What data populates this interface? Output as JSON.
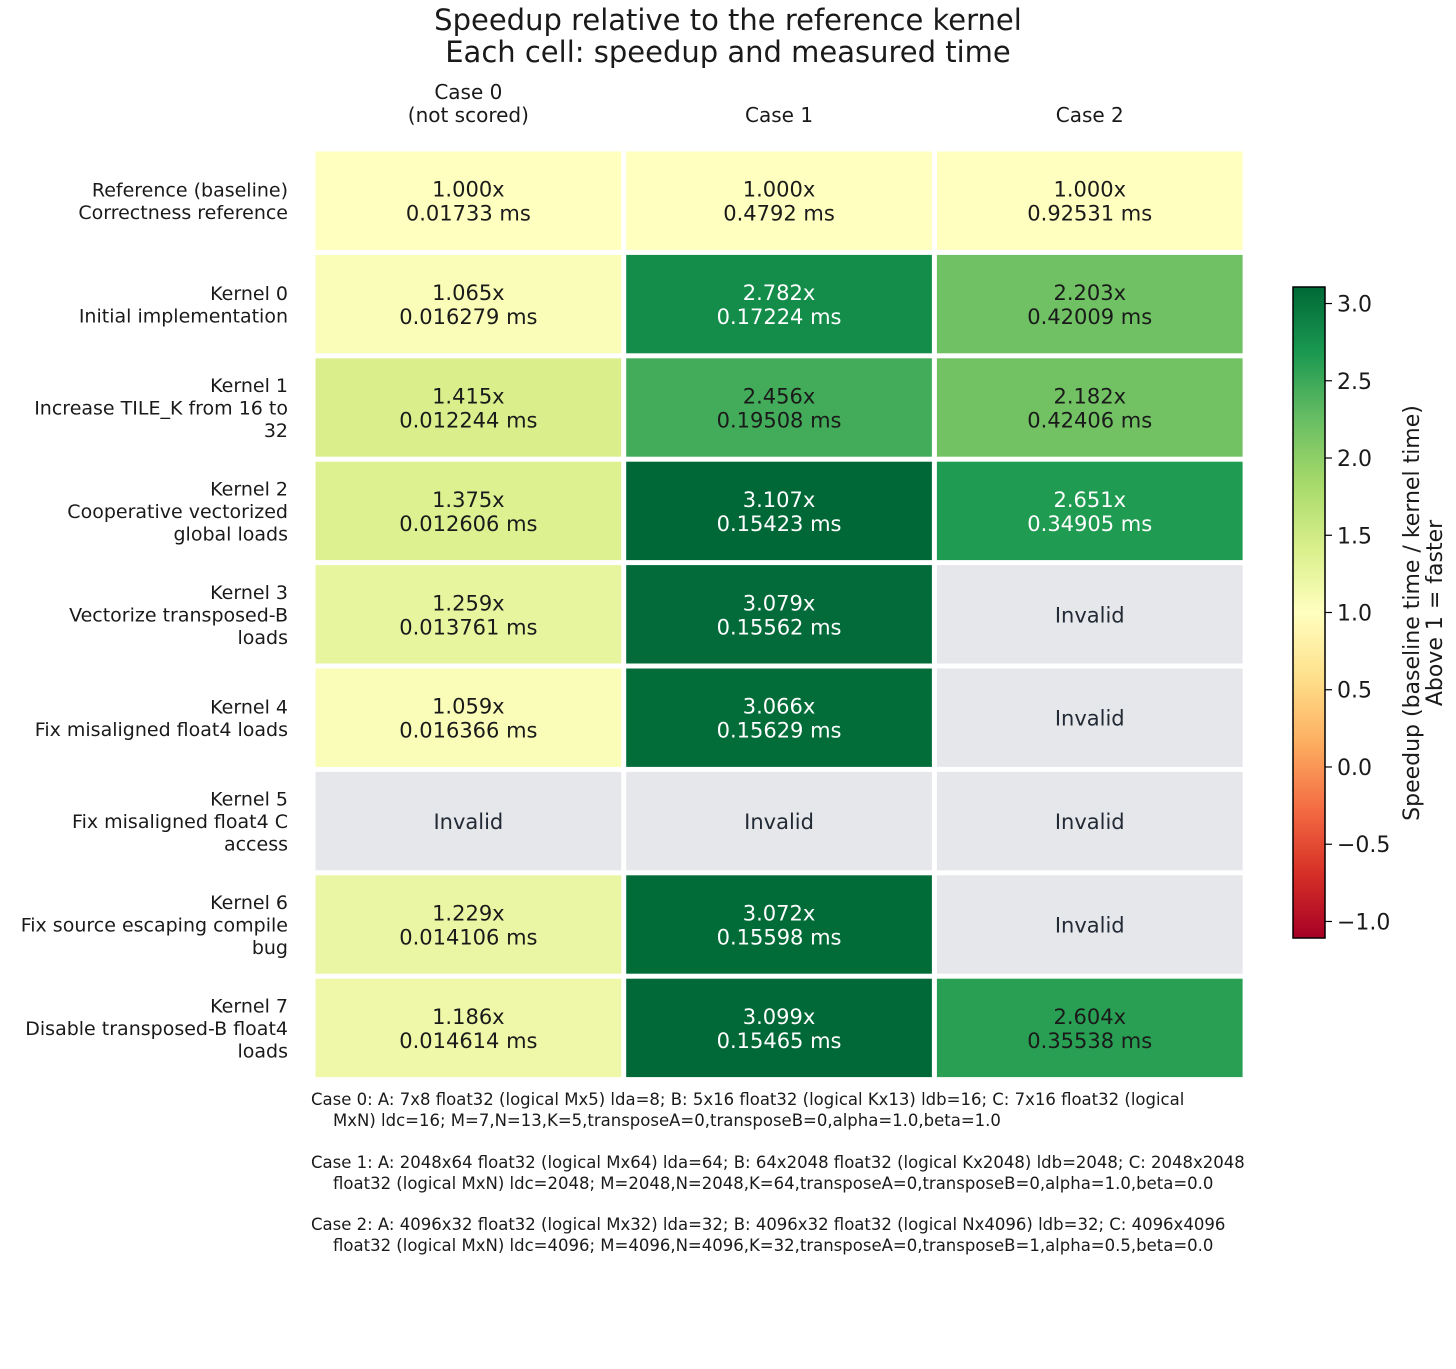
{
  "chart_data": {
    "type": "heatmap",
    "title": "Speedup relative to the reference kernel",
    "subtitle": "Each cell: speedup and measured time",
    "columns": [
      {
        "line1": "Case 0",
        "line2": "(not scored)"
      },
      {
        "line1": "Case 1",
        "line2": ""
      },
      {
        "line1": "Case 2",
        "line2": ""
      }
    ],
    "rows": [
      {
        "lines": [
          "Reference (baseline)",
          "Correctness reference"
        ]
      },
      {
        "lines": [
          "Kernel 0",
          "Initial implementation"
        ]
      },
      {
        "lines": [
          "Kernel 1",
          "Increase TILE_K from 16 to",
          "32"
        ]
      },
      {
        "lines": [
          "Kernel 2",
          "Cooperative vectorized",
          "global loads"
        ]
      },
      {
        "lines": [
          "Kernel 3",
          "Vectorize transposed-B",
          "loads"
        ]
      },
      {
        "lines": [
          "Kernel 4",
          "Fix misaligned float4 loads"
        ]
      },
      {
        "lines": [
          "Kernel 5",
          "Fix misaligned float4 C",
          "access"
        ]
      },
      {
        "lines": [
          "Kernel 6",
          "Fix source escaping compile",
          "bug"
        ]
      },
      {
        "lines": [
          "Kernel 7",
          "Disable transposed-B float4",
          "loads"
        ]
      }
    ],
    "values": [
      [
        1.0,
        1.0,
        1.0
      ],
      [
        1.065,
        2.782,
        2.203
      ],
      [
        1.415,
        2.456,
        2.182
      ],
      [
        1.375,
        3.107,
        2.651
      ],
      [
        1.259,
        3.079,
        null
      ],
      [
        1.059,
        3.066,
        null
      ],
      [
        null,
        null,
        null
      ],
      [
        1.229,
        3.072,
        null
      ],
      [
        1.186,
        3.099,
        2.604
      ]
    ],
    "cells": [
      [
        {
          "speedup": "1.000x",
          "time": "0.01733 ms"
        },
        {
          "speedup": "1.000x",
          "time": "0.4792 ms"
        },
        {
          "speedup": "1.000x",
          "time": "0.92531 ms"
        }
      ],
      [
        {
          "speedup": "1.065x",
          "time": "0.016279 ms"
        },
        {
          "speedup": "2.782x",
          "time": "0.17224 ms"
        },
        {
          "speedup": "2.203x",
          "time": "0.42009 ms"
        }
      ],
      [
        {
          "speedup": "1.415x",
          "time": "0.012244 ms"
        },
        {
          "speedup": "2.456x",
          "time": "0.19508 ms"
        },
        {
          "speedup": "2.182x",
          "time": "0.42406 ms"
        }
      ],
      [
        {
          "speedup": "1.375x",
          "time": "0.012606 ms"
        },
        {
          "speedup": "3.107x",
          "time": "0.15423 ms"
        },
        {
          "speedup": "2.651x",
          "time": "0.34905 ms"
        }
      ],
      [
        {
          "speedup": "1.259x",
          "time": "0.013761 ms"
        },
        {
          "speedup": "3.079x",
          "time": "0.15562 ms"
        },
        {
          "invalid": "Invalid"
        }
      ],
      [
        {
          "speedup": "1.059x",
          "time": "0.016366 ms"
        },
        {
          "speedup": "3.066x",
          "time": "0.15629 ms"
        },
        {
          "invalid": "Invalid"
        }
      ],
      [
        {
          "invalid": "Invalid"
        },
        {
          "invalid": "Invalid"
        },
        {
          "invalid": "Invalid"
        }
      ],
      [
        {
          "speedup": "1.229x",
          "time": "0.014106 ms"
        },
        {
          "speedup": "3.072x",
          "time": "0.15598 ms"
        },
        {
          "invalid": "Invalid"
        }
      ],
      [
        {
          "speedup": "1.186x",
          "time": "0.014614 ms"
        },
        {
          "speedup": "3.099x",
          "time": "0.15465 ms"
        },
        {
          "speedup": "2.604x",
          "time": "0.35538 ms"
        }
      ]
    ],
    "invalid_color": "#e5e7ea",
    "colormap": "RdYlGn",
    "colorbar": {
      "label_line1": "Speedup (baseline time / kernel time)",
      "label_line2": "Above 1 = faster",
      "range": [
        -1.107,
        3.107
      ],
      "ticks": [
        3.0,
        2.5,
        2.0,
        1.5,
        1.0,
        0.5,
        0.0,
        -0.5,
        -1.0
      ],
      "tick_labels": [
        "3.0",
        "2.5",
        "2.0",
        "1.5",
        "1.0",
        "0.5",
        "0.0",
        "−0.5",
        "−1.0"
      ]
    }
  },
  "notes": [
    {
      "line1": "Case 0: A: 7x8 float32 (logical Mx5) lda=8; B: 5x16 float32 (logical Kx13) ldb=16; C: 7x16 float32 (logical",
      "line2": "MxN) ldc=16; M=7,N=13,K=5,transposeA=0,transposeB=0,alpha=1.0,beta=1.0"
    },
    {
      "line1": "Case 1: A: 2048x64 float32 (logical Mx64) lda=64; B: 64x2048 float32 (logical Kx2048) ldb=2048; C: 2048x2048",
      "line2": "float32 (logical MxN) ldc=2048; M=2048,N=2048,K=64,transposeA=0,transposeB=0,alpha=1.0,beta=0.0"
    },
    {
      "line1": "Case 2: A: 4096x32 float32 (logical Mx32) lda=32; B: 4096x32 float32 (logical Nx4096) ldb=32; C: 4096x4096",
      "line2": "float32 (logical MxN) ldc=4096; M=4096,N=4096,K=32,transposeA=0,transposeB=1,alpha=0.5,beta=0.0"
    }
  ]
}
